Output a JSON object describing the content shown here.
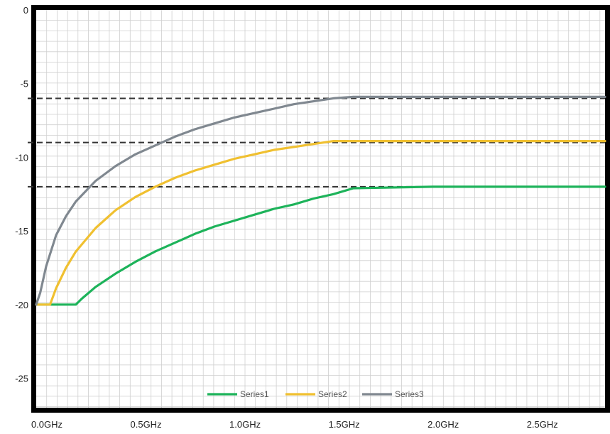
{
  "chart_data": {
    "type": "line",
    "title": "",
    "xlabel": "",
    "ylabel": "",
    "xlim": [
      0.0,
      2.87
    ],
    "ylim": [
      -27,
      0
    ],
    "x_ticks": [
      {
        "value": 0.0,
        "label": "0.0GHz"
      },
      {
        "value": 0.5,
        "label": "0.5GHz"
      },
      {
        "value": 1.0,
        "label": "1.0GHz"
      },
      {
        "value": 1.5,
        "label": "1.5GHz"
      },
      {
        "value": 2.0,
        "label": "2.0GHz"
      },
      {
        "value": 2.5,
        "label": "2.5GHz"
      }
    ],
    "y_ticks": [
      {
        "value": 0,
        "label": "0"
      },
      {
        "value": -5,
        "label": "-5"
      },
      {
        "value": -10,
        "label": "-10"
      },
      {
        "value": -15,
        "label": "-15"
      },
      {
        "value": -20,
        "label": "-20"
      },
      {
        "value": -25,
        "label": "-25"
      }
    ],
    "grid": true,
    "legend_position": "bottom",
    "reference_lines": [
      {
        "y": -6,
        "style": "dashed",
        "color": "#333333"
      },
      {
        "y": -9,
        "style": "dashed",
        "color": "#333333"
      },
      {
        "y": -12,
        "style": "dashed",
        "color": "#333333"
      }
    ],
    "series": [
      {
        "name": "Series1",
        "color": "#1db35a",
        "x": [
          0.0,
          0.2,
          0.23,
          0.3,
          0.4,
          0.5,
          0.6,
          0.7,
          0.8,
          0.9,
          1.0,
          1.1,
          1.2,
          1.3,
          1.4,
          1.5,
          1.6,
          2.0,
          2.5,
          2.87
        ],
        "y": [
          -20,
          -20,
          -19.6,
          -18.8,
          -17.9,
          -17.1,
          -16.4,
          -15.8,
          -15.2,
          -14.7,
          -14.3,
          -13.9,
          -13.5,
          -13.2,
          -12.8,
          -12.5,
          -12.1,
          -12.0,
          -12.0,
          -12.0
        ]
      },
      {
        "name": "Series2",
        "color": "#f0c030",
        "x": [
          0.0,
          0.07,
          0.1,
          0.15,
          0.2,
          0.3,
          0.4,
          0.5,
          0.6,
          0.7,
          0.8,
          0.9,
          1.0,
          1.1,
          1.2,
          1.3,
          1.4,
          1.5,
          1.6,
          2.0,
          2.5,
          2.87
        ],
        "y": [
          -20,
          -20,
          -18.9,
          -17.5,
          -16.4,
          -14.8,
          -13.6,
          -12.7,
          -12.0,
          -11.4,
          -10.9,
          -10.5,
          -10.1,
          -9.8,
          -9.5,
          -9.3,
          -9.1,
          -8.9,
          -8.9,
          -8.9,
          -8.9,
          -8.9
        ]
      },
      {
        "name": "Series3",
        "color": "#808890",
        "x": [
          0.0,
          0.02,
          0.05,
          0.1,
          0.15,
          0.2,
          0.3,
          0.4,
          0.5,
          0.6,
          0.7,
          0.8,
          0.9,
          1.0,
          1.1,
          1.2,
          1.3,
          1.4,
          1.5,
          1.6,
          2.0,
          2.5,
          2.87
        ],
        "y": [
          -20,
          -19.2,
          -17.4,
          -15.3,
          -14.0,
          -13.0,
          -11.6,
          -10.6,
          -9.8,
          -9.2,
          -8.6,
          -8.1,
          -7.7,
          -7.3,
          -7.0,
          -6.7,
          -6.4,
          -6.2,
          -6.0,
          -5.9,
          -5.9,
          -5.9,
          -5.9
        ]
      }
    ]
  }
}
